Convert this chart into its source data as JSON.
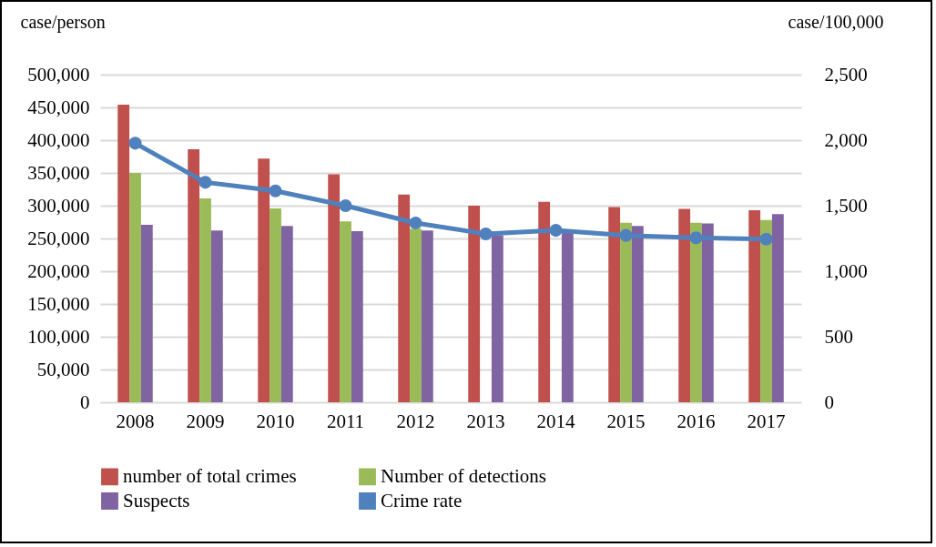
{
  "chart_data": {
    "type": "bar",
    "categories": [
      "2008",
      "2009",
      "2010",
      "2011",
      "2012",
      "2013",
      "2014",
      "2015",
      "2016",
      "2017"
    ],
    "ylabel": "case/person",
    "y2label": "case/100,000",
    "ylim": [
      0,
      500000
    ],
    "yticks": [
      0,
      {
        "value": 50000,
        "label": "50,000"
      },
      {
        "value": 100000,
        "label": "100,000"
      },
      {
        "value": 150000,
        "label": "150,000"
      },
      {
        "value": 200000,
        "label": "200,000"
      },
      {
        "value": 250000,
        "label": "250,000"
      },
      {
        "value": 300000,
        "label": "300,000"
      },
      {
        "value": 350000,
        "label": "350,000"
      },
      {
        "value": 400000,
        "label": "400,000"
      },
      {
        "value": 450000,
        "label": "450,000"
      },
      {
        "value": 500000,
        "label": "500,000"
      }
    ],
    "y2lim": [
      0,
      2500
    ],
    "y2ticks": [
      0,
      500,
      {
        "value": 1000,
        "label": "1,000"
      },
      {
        "value": 1500,
        "label": "1,500"
      },
      {
        "value": 2000,
        "label": "2,000"
      },
      {
        "value": 2500,
        "label": "2,500"
      }
    ],
    "grid": "y",
    "legend": "bottom",
    "series": [
      {
        "name": "number of  total crimes",
        "color": "#c0504d",
        "values": [
          454000,
          386000,
          372000,
          348000,
          317000,
          300000,
          306000,
          298000,
          295000,
          293000
        ]
      },
      {
        "name": "Number of  detections",
        "color": "#9bbb59",
        "values": [
          350000,
          311000,
          296000,
          276000,
          265000,
          null,
          null,
          274000,
          274000,
          278000
        ]
      },
      {
        "name": "Suspects",
        "color": "#8064a2",
        "values": [
          271000,
          262000,
          269000,
          261000,
          262000,
          255000,
          260000,
          269000,
          273000,
          287000
        ]
      },
      {
        "name": "Crime rate",
        "type": "line",
        "axis": "y2",
        "marker": "circle",
        "color": "#4f81bd",
        "values": [
          1977,
          1678,
          1613,
          1500,
          1368,
          1285,
          1312,
          1273,
          1255,
          1245
        ]
      }
    ]
  }
}
